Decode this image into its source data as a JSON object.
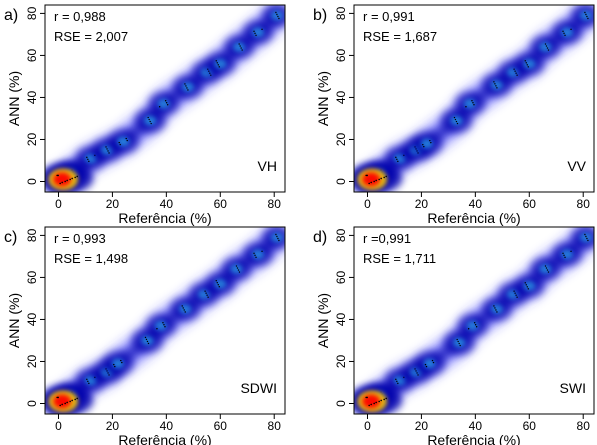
{
  "chart_data": [
    {
      "type": "scatter",
      "panel_label": "a)",
      "stats": {
        "r": "r = 0,988",
        "rse": "RSE = 2,007"
      },
      "corner_label": "VH",
      "xlabel": "Referência (%)",
      "ylabel": "ANN (%)",
      "xlim": [
        -5,
        84
      ],
      "ylim": [
        -5,
        84
      ],
      "xticks": [
        0,
        20,
        40,
        60,
        80
      ],
      "yticks": [
        0,
        20,
        40,
        60,
        80
      ],
      "grid": false,
      "density_clusters": [
        {
          "x": 1,
          "y": 1,
          "weight": 1.0
        },
        {
          "x": 5,
          "y": 4,
          "weight": 0.55
        },
        {
          "x": 12,
          "y": 11,
          "weight": 0.35
        },
        {
          "x": 18,
          "y": 15,
          "weight": 0.35
        },
        {
          "x": 24,
          "y": 19,
          "weight": 0.4
        },
        {
          "x": 34,
          "y": 29,
          "weight": 0.42
        },
        {
          "x": 39,
          "y": 37,
          "weight": 0.3
        },
        {
          "x": 48,
          "y": 45,
          "weight": 0.3
        },
        {
          "x": 55,
          "y": 52,
          "weight": 0.28
        },
        {
          "x": 60,
          "y": 56,
          "weight": 0.3
        },
        {
          "x": 67,
          "y": 64,
          "weight": 0.3
        },
        {
          "x": 74,
          "y": 71,
          "weight": 0.32
        },
        {
          "x": 81,
          "y": 79,
          "weight": 0.25
        }
      ]
    },
    {
      "type": "scatter",
      "panel_label": "b)",
      "stats": {
        "r": "r = 0,991",
        "rse": "RSE = 1,687"
      },
      "corner_label": "VV",
      "xlabel": "Referência (%)",
      "ylabel": "ANN (%)",
      "xlim": [
        -5,
        84
      ],
      "ylim": [
        -5,
        84
      ],
      "xticks": [
        0,
        20,
        40,
        60,
        80
      ],
      "yticks": [
        0,
        20,
        40,
        60,
        80
      ],
      "grid": false,
      "density_clusters": [
        {
          "x": 1,
          "y": 1,
          "weight": 1.0
        },
        {
          "x": 5,
          "y": 4,
          "weight": 0.55
        },
        {
          "x": 12,
          "y": 11,
          "weight": 0.35
        },
        {
          "x": 18,
          "y": 15,
          "weight": 0.35
        },
        {
          "x": 22,
          "y": 18,
          "weight": 0.4
        },
        {
          "x": 33,
          "y": 29,
          "weight": 0.42
        },
        {
          "x": 38,
          "y": 37,
          "weight": 0.3
        },
        {
          "x": 48,
          "y": 46,
          "weight": 0.3
        },
        {
          "x": 54,
          "y": 52,
          "weight": 0.28
        },
        {
          "x": 60,
          "y": 56,
          "weight": 0.3
        },
        {
          "x": 66,
          "y": 64,
          "weight": 0.3
        },
        {
          "x": 74,
          "y": 71,
          "weight": 0.32
        },
        {
          "x": 81,
          "y": 79,
          "weight": 0.25
        }
      ]
    },
    {
      "type": "scatter",
      "panel_label": "c)",
      "stats": {
        "r": "r = 0,993",
        "rse": "RSE = 1,498"
      },
      "corner_label": "SDWI",
      "xlabel": "Referência (%)",
      "ylabel": "ANN (%)",
      "xlim": [
        -5,
        84
      ],
      "ylim": [
        -5,
        84
      ],
      "xticks": [
        0,
        20,
        40,
        60,
        80
      ],
      "yticks": [
        0,
        20,
        40,
        60,
        80
      ],
      "grid": false,
      "density_clusters": [
        {
          "x": 1,
          "y": 1,
          "weight": 1.0
        },
        {
          "x": 5,
          "y": 4,
          "weight": 0.55
        },
        {
          "x": 12,
          "y": 11,
          "weight": 0.35
        },
        {
          "x": 18,
          "y": 15,
          "weight": 0.35
        },
        {
          "x": 22,
          "y": 19,
          "weight": 0.4
        },
        {
          "x": 33,
          "y": 30,
          "weight": 0.42
        },
        {
          "x": 38,
          "y": 37,
          "weight": 0.3
        },
        {
          "x": 47,
          "y": 45,
          "weight": 0.3
        },
        {
          "x": 54,
          "y": 52,
          "weight": 0.28
        },
        {
          "x": 60,
          "y": 57,
          "weight": 0.3
        },
        {
          "x": 66,
          "y": 64,
          "weight": 0.3
        },
        {
          "x": 74,
          "y": 71,
          "weight": 0.32
        },
        {
          "x": 81,
          "y": 79,
          "weight": 0.25
        }
      ]
    },
    {
      "type": "scatter",
      "panel_label": "d)",
      "stats": {
        "r": "r =0,991",
        "rse": "RSE = 1,711"
      },
      "corner_label": "SWI",
      "xlabel": "Referência (%)",
      "ylabel": "ANN (%)",
      "xlim": [
        -5,
        84
      ],
      "ylim": [
        -5,
        84
      ],
      "xticks": [
        0,
        20,
        40,
        60,
        80
      ],
      "yticks": [
        0,
        20,
        40,
        60,
        80
      ],
      "grid": false,
      "density_clusters": [
        {
          "x": 1,
          "y": 1,
          "weight": 1.0
        },
        {
          "x": 5,
          "y": 4,
          "weight": 0.55
        },
        {
          "x": 12,
          "y": 11,
          "weight": 0.35
        },
        {
          "x": 18,
          "y": 15,
          "weight": 0.35
        },
        {
          "x": 23,
          "y": 19,
          "weight": 0.4
        },
        {
          "x": 34,
          "y": 29,
          "weight": 0.42
        },
        {
          "x": 39,
          "y": 37,
          "weight": 0.3
        },
        {
          "x": 48,
          "y": 45,
          "weight": 0.3
        },
        {
          "x": 54,
          "y": 52,
          "weight": 0.28
        },
        {
          "x": 60,
          "y": 56,
          "weight": 0.3
        },
        {
          "x": 66,
          "y": 64,
          "weight": 0.3
        },
        {
          "x": 74,
          "y": 71,
          "weight": 0.32
        },
        {
          "x": 81,
          "y": 79,
          "weight": 0.25
        }
      ]
    }
  ],
  "colors": {
    "background": "#ffffff",
    "density_outer": "#2b2bff",
    "density_mid": "#0000aa",
    "density_hot": "#ff0000",
    "density_warm": "#ffcc00",
    "axis": "#000000"
  }
}
